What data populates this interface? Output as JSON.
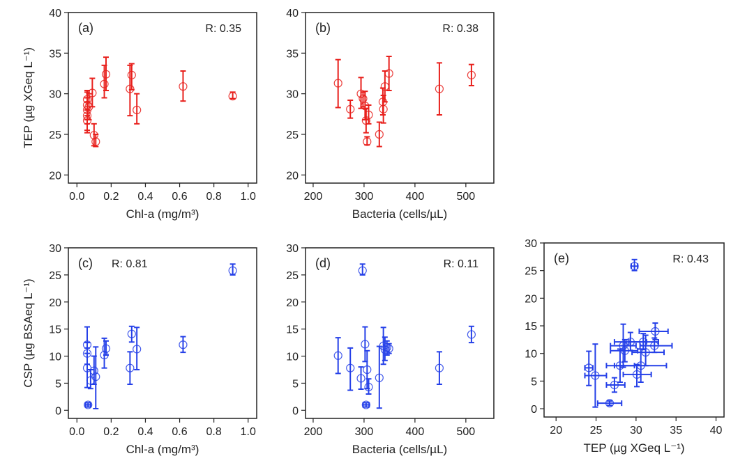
{
  "colors": {
    "red": "#e8201c",
    "blue": "#2540e8"
  },
  "chart_data": [
    {
      "id": "a",
      "type": "scatter",
      "color": "red",
      "panel_label": "(a)",
      "r_label": "R: 0.35",
      "xlabel": "Chl-a (mg/m³)",
      "ylabel": "TEP (µg XGeq L⁻¹)",
      "xlim": [
        -0.05,
        1.05
      ],
      "ylim": [
        19,
        40
      ],
      "xticks": [
        "0.0",
        "0.2",
        "0.4",
        "0.6",
        "0.8",
        "1.0"
      ],
      "xtick_values": [
        0,
        0.2,
        0.4,
        0.6,
        0.8,
        1.0
      ],
      "yticks": [
        "20",
        "25",
        "30",
        "35",
        "40"
      ],
      "ytick_values": [
        20,
        25,
        30,
        35,
        40
      ],
      "points": [
        {
          "x": 0.06,
          "y": 29.3,
          "ylo": 27.3,
          "yhi": 30.4
        },
        {
          "x": 0.06,
          "y": 28.6,
          "ylo": 26.8,
          "yhi": 30.2
        },
        {
          "x": 0.06,
          "y": 28.0,
          "ylo": 26.3,
          "yhi": 29.5
        },
        {
          "x": 0.06,
          "y": 27.3,
          "ylo": 25.2,
          "yhi": 29.0
        },
        {
          "x": 0.06,
          "y": 26.7,
          "ylo": 25.5,
          "yhi": 28.0
        },
        {
          "x": 0.07,
          "y": 28.4,
          "ylo": 26.8,
          "yhi": 30.0
        },
        {
          "x": 0.09,
          "y": 30.1,
          "ylo": 28.4,
          "yhi": 31.9
        },
        {
          "x": 0.1,
          "y": 24.9,
          "ylo": 23.6,
          "yhi": 26.3
        },
        {
          "x": 0.11,
          "y": 24.1,
          "ylo": 23.5,
          "yhi": 25.0
        },
        {
          "x": 0.16,
          "y": 31.2,
          "ylo": 29.5,
          "yhi": 33.5
        },
        {
          "x": 0.17,
          "y": 32.4,
          "ylo": 30.4,
          "yhi": 34.5
        },
        {
          "x": 0.31,
          "y": 30.6,
          "ylo": 27.3,
          "yhi": 33.5
        },
        {
          "x": 0.32,
          "y": 32.3,
          "ylo": 30.5,
          "yhi": 33.7
        },
        {
          "x": 0.35,
          "y": 28.0,
          "ylo": 26.3,
          "yhi": 30.0
        },
        {
          "x": 0.62,
          "y": 30.9,
          "ylo": 29.1,
          "yhi": 32.8
        },
        {
          "x": 0.91,
          "y": 29.7,
          "ylo": 29.4,
          "yhi": 30.2
        }
      ]
    },
    {
      "id": "b",
      "type": "scatter",
      "color": "red",
      "panel_label": "(b)",
      "r_label": "R: 0.38",
      "xlabel": "Bacteria (cells/µL)",
      "ylabel": "",
      "xlim": [
        185,
        555
      ],
      "ylim": [
        19,
        40
      ],
      "xticks": [
        "200",
        "300",
        "400",
        "500"
      ],
      "xtick_values": [
        200,
        300,
        400,
        500
      ],
      "yticks": [
        "20",
        "25",
        "30",
        "35",
        "40"
      ],
      "ytick_values": [
        20,
        25,
        30,
        35,
        40
      ],
      "points": [
        {
          "x": 249,
          "y": 31.3,
          "ylo": 28.3,
          "yhi": 34.2
        },
        {
          "x": 273,
          "y": 28.1,
          "ylo": 27.0,
          "yhi": 29.2
        },
        {
          "x": 294,
          "y": 30.0,
          "ylo": 28.2,
          "yhi": 32.0
        },
        {
          "x": 298,
          "y": 29.4,
          "ylo": 28.4,
          "yhi": 30.2
        },
        {
          "x": 302,
          "y": 28.5,
          "ylo": 26.8,
          "yhi": 30.3
        },
        {
          "x": 304,
          "y": 26.7,
          "ylo": 25.2,
          "yhi": 28.2
        },
        {
          "x": 306,
          "y": 24.1,
          "ylo": 23.7,
          "yhi": 24.7
        },
        {
          "x": 309,
          "y": 27.4,
          "ylo": 26.3,
          "yhi": 28.6
        },
        {
          "x": 330,
          "y": 25.0,
          "ylo": 23.5,
          "yhi": 26.5
        },
        {
          "x": 337,
          "y": 29.0,
          "ylo": 27.4,
          "yhi": 30.7
        },
        {
          "x": 338,
          "y": 28.1,
          "ylo": 26.4,
          "yhi": 29.8
        },
        {
          "x": 341,
          "y": 30.9,
          "ylo": 29.0,
          "yhi": 32.8
        },
        {
          "x": 349,
          "y": 32.5,
          "ylo": 30.4,
          "yhi": 34.6
        },
        {
          "x": 448,
          "y": 30.6,
          "ylo": 27.4,
          "yhi": 33.8
        },
        {
          "x": 511,
          "y": 32.3,
          "ylo": 31.0,
          "yhi": 33.6
        }
      ]
    },
    {
      "id": "c",
      "type": "scatter",
      "color": "blue",
      "panel_label": "(c)",
      "r_label": "R: 0.81",
      "xlabel": "Chl-a  (mg/m³)",
      "ylabel": "CSP (µg BSAeq L⁻¹)",
      "xlim": [
        -0.05,
        1.05
      ],
      "ylim": [
        -1.5,
        30
      ],
      "xticks": [
        "0.0",
        "0.2",
        "0.4",
        "0.6",
        "0.8",
        "1.0"
      ],
      "xtick_values": [
        0,
        0.2,
        0.4,
        0.6,
        0.8,
        1.0
      ],
      "yticks": [
        "0",
        "5",
        "10",
        "15",
        "20",
        "25",
        "30"
      ],
      "ytick_values": [
        0,
        5,
        10,
        15,
        20,
        25,
        30
      ],
      "points": [
        {
          "x": 0.06,
          "y": 12.1,
          "ylo": 10.5,
          "yhi": 15.4
        },
        {
          "x": 0.06,
          "y": 10.5,
          "ylo": 8.5,
          "yhi": 12.5
        },
        {
          "x": 0.06,
          "y": 7.8,
          "ylo": 4.2,
          "yhi": 11.5
        },
        {
          "x": 0.065,
          "y": 1.0,
          "ylo": 0.6,
          "yhi": 1.4,
          "xlo": 0.05,
          "xhi": 0.08
        },
        {
          "x": 0.08,
          "y": 5.5,
          "ylo": 4.0,
          "yhi": 7.5
        },
        {
          "x": 0.1,
          "y": 7.3,
          "ylo": 4.8,
          "yhi": 10.0
        },
        {
          "x": 0.11,
          "y": 6.2,
          "ylo": 0.3,
          "yhi": 11.7
        },
        {
          "x": 0.16,
          "y": 10.2,
          "ylo": 7.8,
          "yhi": 13.3
        },
        {
          "x": 0.17,
          "y": 11.4,
          "ylo": 10.2,
          "yhi": 12.8
        },
        {
          "x": 0.31,
          "y": 7.8,
          "ylo": 4.8,
          "yhi": 10.8
        },
        {
          "x": 0.32,
          "y": 14.1,
          "ylo": 12.6,
          "yhi": 15.5
        },
        {
          "x": 0.35,
          "y": 11.3,
          "ylo": 7.5,
          "yhi": 15.3
        },
        {
          "x": 0.62,
          "y": 12.1,
          "ylo": 10.7,
          "yhi": 13.6
        },
        {
          "x": 0.91,
          "y": 25.8,
          "ylo": 25.0,
          "yhi": 27.0
        }
      ]
    },
    {
      "id": "d",
      "type": "scatter",
      "color": "blue",
      "panel_label": "(d)",
      "r_label": "R: 0.11",
      "xlabel": "Bacteria (cells/µL)",
      "ylabel": "",
      "xlim": [
        185,
        555
      ],
      "ylim": [
        -1.5,
        30
      ],
      "xticks": [
        "200",
        "300",
        "400",
        "500"
      ],
      "xtick_values": [
        200,
        300,
        400,
        500
      ],
      "yticks": [
        "0",
        "5",
        "10",
        "15",
        "20",
        "25",
        "30"
      ],
      "ytick_values": [
        0,
        5,
        10,
        15,
        20,
        25,
        30
      ],
      "points": [
        {
          "x": 249,
          "y": 10.1,
          "ylo": 6.8,
          "yhi": 13.4
        },
        {
          "x": 273,
          "y": 7.8,
          "ylo": 3.7,
          "yhi": 11.5
        },
        {
          "x": 294,
          "y": 5.9,
          "ylo": 3.9,
          "yhi": 8.0
        },
        {
          "x": 297,
          "y": 25.8,
          "ylo": 25.0,
          "yhi": 27.0
        },
        {
          "x": 302,
          "y": 12.2,
          "ylo": 9.0,
          "yhi": 15.4
        },
        {
          "x": 304,
          "y": 1.0,
          "ylo": 0.6,
          "yhi": 1.4,
          "xlo": 298,
          "xhi": 310
        },
        {
          "x": 306,
          "y": 7.5,
          "ylo": 4.0,
          "yhi": 11.0
        },
        {
          "x": 309,
          "y": 4.3,
          "ylo": 3.0,
          "yhi": 5.8
        },
        {
          "x": 330,
          "y": 6.0,
          "ylo": 0.4,
          "yhi": 11.8
        },
        {
          "x": 338,
          "y": 11.9,
          "ylo": 8.5,
          "yhi": 15.3
        },
        {
          "x": 341,
          "y": 11.2,
          "ylo": 9.2,
          "yhi": 13.5
        },
        {
          "x": 345,
          "y": 11.6,
          "ylo": 10.2,
          "yhi": 12.8
        },
        {
          "x": 349,
          "y": 11.4,
          "ylo": 10.5,
          "yhi": 12.3
        },
        {
          "x": 448,
          "y": 7.8,
          "ylo": 4.8,
          "yhi": 10.8
        },
        {
          "x": 511,
          "y": 14.0,
          "ylo": 12.5,
          "yhi": 15.5
        }
      ]
    },
    {
      "id": "e",
      "type": "scatter",
      "color": "blue",
      "panel_label": "(e)",
      "r_label": "R: 0.43",
      "xlabel": "TEP (µg XGeq L⁻¹)",
      "ylabel": "",
      "xlim": [
        18.5,
        41
      ],
      "ylim": [
        -1.5,
        30
      ],
      "xticks": [
        "20",
        "25",
        "30",
        "35",
        "40"
      ],
      "xtick_values": [
        20,
        25,
        30,
        35,
        40
      ],
      "yticks": [
        "0",
        "5",
        "10",
        "15",
        "20",
        "25",
        "30"
      ],
      "ytick_values": [
        0,
        5,
        10,
        15,
        20,
        25,
        30
      ],
      "points": [
        {
          "x": 29.8,
          "y": 25.8,
          "ylo": 25.0,
          "yhi": 27.0,
          "xlo": 29.4,
          "xhi": 30.2
        },
        {
          "x": 24.1,
          "y": 7.4,
          "ylo": 4.2,
          "yhi": 10.4,
          "xlo": 23.6,
          "xhi": 24.6
        },
        {
          "x": 24.9,
          "y": 6.0,
          "ylo": 0.3,
          "yhi": 11.7,
          "xlo": 23.6,
          "xhi": 26.3
        },
        {
          "x": 26.7,
          "y": 1.0,
          "ylo": 0.6,
          "yhi": 1.4,
          "xlo": 25.2,
          "xhi": 28.2
        },
        {
          "x": 27.3,
          "y": 4.3,
          "ylo": 3.0,
          "yhi": 5.6,
          "xlo": 26.3,
          "xhi": 28.6
        },
        {
          "x": 28.0,
          "y": 7.8,
          "ylo": 4.8,
          "yhi": 10.8,
          "xlo": 26.3,
          "xhi": 29.8
        },
        {
          "x": 28.4,
          "y": 11.4,
          "ylo": 7.5,
          "yhi": 15.3,
          "xlo": 26.8,
          "xhi": 30.0
        },
        {
          "x": 28.6,
          "y": 10.5,
          "ylo": 8.5,
          "yhi": 12.5,
          "xlo": 26.8,
          "xhi": 30.2
        },
        {
          "x": 29.3,
          "y": 12.1,
          "ylo": 10.5,
          "yhi": 13.8,
          "xlo": 27.3,
          "xhi": 31.3
        },
        {
          "x": 30.1,
          "y": 6.2,
          "ylo": 4.0,
          "yhi": 8.0,
          "xlo": 28.4,
          "xhi": 31.9
        },
        {
          "x": 30.6,
          "y": 7.8,
          "ylo": 4.8,
          "yhi": 10.8,
          "xlo": 27.3,
          "xhi": 33.8
        },
        {
          "x": 30.9,
          "y": 12.1,
          "ylo": 10.7,
          "yhi": 13.6,
          "xlo": 29.1,
          "xhi": 32.8
        },
        {
          "x": 31.2,
          "y": 10.2,
          "ylo": 7.8,
          "yhi": 13.3,
          "xlo": 29.5,
          "xhi": 33.5
        },
        {
          "x": 32.3,
          "y": 11.4,
          "ylo": 10.2,
          "yhi": 12.8,
          "xlo": 30.5,
          "xhi": 34.5
        },
        {
          "x": 32.4,
          "y": 14.0,
          "ylo": 12.5,
          "yhi": 15.5,
          "xlo": 30.4,
          "xhi": 34.0
        }
      ]
    }
  ]
}
